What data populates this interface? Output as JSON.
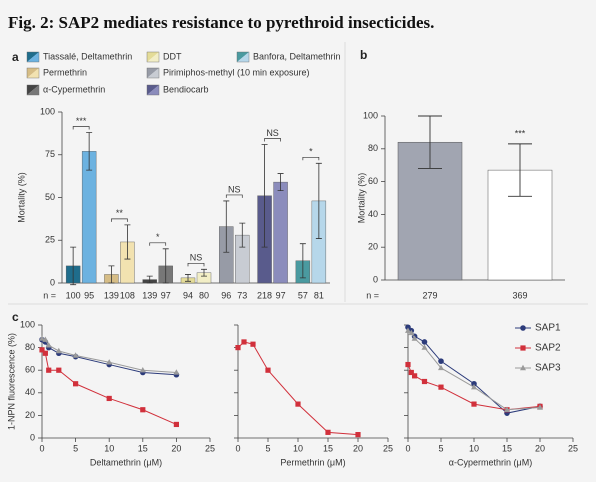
{
  "title": "Fig. 2: SAP2 mediates resistance to pyrethroid insecticides.",
  "chart_data": [
    {
      "type": "bar",
      "panel_label": "a",
      "ylabel": "Mortality (%)",
      "ylim": [
        0,
        100
      ],
      "yticks": [
        0,
        25,
        50,
        75,
        100
      ],
      "n_label": "n =",
      "series": [
        {
          "name": "Tiassalé, Deltamethrin",
          "colors": [
            "#1f6d8c",
            "#6cb2e0"
          ],
          "values": [
            10,
            77
          ],
          "errors": [
            11,
            11
          ],
          "n": [
            100,
            95
          ],
          "significance": "***"
        },
        {
          "name": "Permethrin",
          "colors": [
            "#d6bd86",
            "#f2e2b0"
          ],
          "values": [
            5,
            24
          ],
          "errors": [
            5,
            10
          ],
          "n": [
            139,
            108
          ],
          "significance": "**"
        },
        {
          "name": "α-Cypermethrin",
          "colors": [
            "#444444",
            "#777777"
          ],
          "values": [
            2,
            10
          ],
          "errors": [
            2,
            10
          ],
          "n": [
            139,
            97
          ],
          "significance": "*"
        },
        {
          "name": "DDT",
          "colors": [
            "#e4dc98",
            "#f2eec6"
          ],
          "values": [
            3,
            6
          ],
          "errors": [
            2,
            2
          ],
          "n": [
            94,
            80
          ],
          "significance": "NS"
        },
        {
          "name": "Pirimiphos-methyl (10 min exposure)",
          "colors": [
            "#979ba6",
            "#c8ccd3"
          ],
          "values": [
            33,
            28
          ],
          "errors": [
            15,
            7
          ],
          "n": [
            96,
            73
          ],
          "significance": "NS"
        },
        {
          "name": "Bendiocarb",
          "colors": [
            "#595b8c",
            "#8b8cbc"
          ],
          "values": [
            51,
            59
          ],
          "errors": [
            30,
            5
          ],
          "n": [
            218,
            97
          ],
          "significance": "NS"
        },
        {
          "name": "Banfora, Deltamethrin",
          "colors": [
            "#4a9aa0",
            "#b6d7ea"
          ],
          "values": [
            13,
            48
          ],
          "errors": [
            10,
            22
          ],
          "n": [
            57,
            81
          ],
          "significance": "*"
        }
      ]
    },
    {
      "type": "bar",
      "panel_label": "b",
      "ylabel": "Mortality (%)",
      "ylim": [
        0,
        100
      ],
      "yticks": [
        0,
        20,
        40,
        60,
        80,
        100
      ],
      "n_label": "n =",
      "values": [
        84,
        67
      ],
      "errors": [
        16,
        16
      ],
      "colors": [
        "#a1a5b1",
        "#ffffff"
      ],
      "n": [
        279,
        369
      ],
      "significance": "***"
    },
    {
      "type": "line",
      "panel_label": "c",
      "ylabel": "1-NPN fluorescence (%)",
      "xlabel": "Deltamethrin (μM)",
      "xlim": [
        0,
        25
      ],
      "xticks": [
        0,
        5,
        10,
        15,
        20,
        25
      ],
      "ylim": [
        0,
        100
      ],
      "yticks": [
        0,
        20,
        40,
        60,
        80,
        100
      ],
      "ytick_labels": true,
      "x": [
        0,
        0.5,
        1,
        2.5,
        5,
        10,
        15,
        20
      ],
      "series": [
        {
          "color": "#2c3b7a",
          "marker": "circle",
          "values": [
            87,
            85,
            80,
            75,
            72,
            65,
            58,
            56
          ]
        },
        {
          "color": "#d1303b",
          "marker": "square",
          "values": [
            78,
            75,
            60,
            60,
            48,
            35,
            25,
            12
          ]
        },
        {
          "color": "#9a9a9a",
          "marker": "triangle",
          "values": [
            88,
            87,
            82,
            77,
            73,
            67,
            60,
            58
          ]
        }
      ]
    },
    {
      "type": "line",
      "xlabel": "Permethrin (μM)",
      "xlim": [
        0,
        25
      ],
      "xticks": [
        0,
        5,
        10,
        15,
        20,
        25
      ],
      "ylim": [
        0,
        100
      ],
      "yticks": [
        0,
        20,
        40,
        60,
        80,
        100
      ],
      "ytick_labels": false,
      "x": [
        0,
        1,
        2.5,
        5,
        10,
        15,
        20
      ],
      "series": [
        {
          "color": "#d1303b",
          "marker": "square",
          "values": [
            80,
            85,
            83,
            60,
            30,
            5,
            3
          ]
        }
      ]
    },
    {
      "type": "line",
      "xlabel": "α-Cypermethrin (μM)",
      "xlim": [
        0,
        25
      ],
      "xticks": [
        0,
        5,
        10,
        15,
        20,
        25
      ],
      "ylim": [
        0,
        100
      ],
      "yticks": [
        0,
        20,
        40,
        60,
        80,
        100
      ],
      "ytick_labels": false,
      "legend": "upper right",
      "x": [
        0,
        0.5,
        1,
        2.5,
        5,
        10,
        15,
        20
      ],
      "series": [
        {
          "name": "SAP1",
          "color": "#2c3b7a",
          "marker": "circle",
          "values": [
            98,
            95,
            90,
            85,
            68,
            48,
            22,
            28
          ]
        },
        {
          "name": "SAP2",
          "color": "#d1303b",
          "marker": "square",
          "values": [
            65,
            58,
            55,
            50,
            45,
            30,
            25,
            28
          ]
        },
        {
          "name": "SAP3",
          "color": "#9a9a9a",
          "marker": "triangle",
          "values": [
            95,
            93,
            88,
            80,
            62,
            45,
            25,
            27
          ]
        }
      ]
    }
  ]
}
